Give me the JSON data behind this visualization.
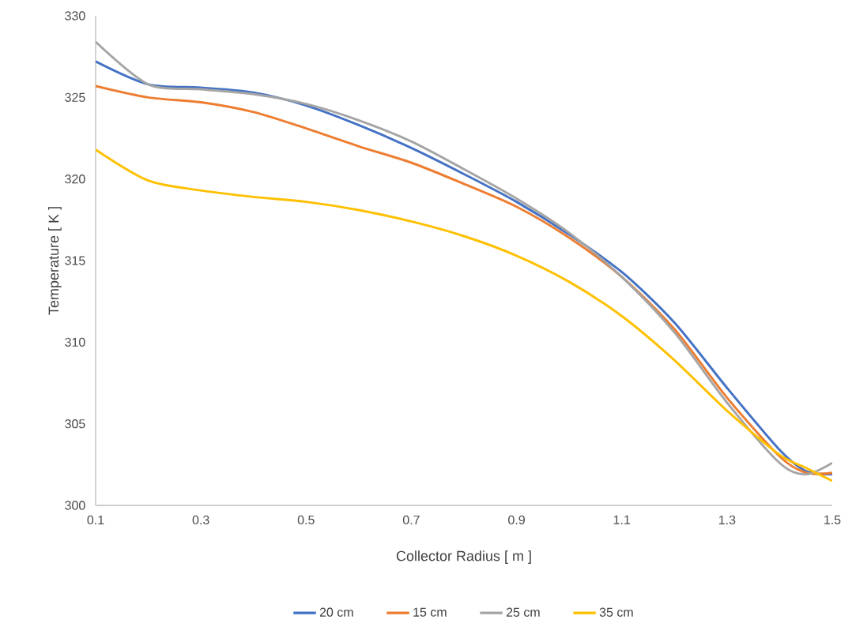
{
  "chart_data": {
    "type": "line",
    "xlabel": "Collector Radius [ m ]",
    "ylabel": "Temperature [ K ]",
    "x": [
      0.1,
      0.2,
      0.3,
      0.4,
      0.5,
      0.6,
      0.7,
      0.8,
      0.9,
      1.0,
      1.1,
      1.2,
      1.3,
      1.4,
      1.45,
      1.5
    ],
    "series": [
      {
        "name": "20 cm",
        "color": "#4472c4",
        "values": [
          327.2,
          325.8,
          325.6,
          325.3,
          324.5,
          323.3,
          321.9,
          320.3,
          318.6,
          316.6,
          314.3,
          311.2,
          307.2,
          303.4,
          302.1,
          301.9
        ]
      },
      {
        "name": "15 cm",
        "color": "#ed7d31",
        "values": [
          325.7,
          325.0,
          324.7,
          324.1,
          323.1,
          322.0,
          321.0,
          319.7,
          318.3,
          316.4,
          314.0,
          310.8,
          306.6,
          303.0,
          302.0,
          302.0
        ]
      },
      {
        "name": "25 cm",
        "color": "#a5a5a5",
        "values": [
          328.4,
          325.8,
          325.5,
          325.2,
          324.6,
          323.6,
          322.3,
          320.6,
          318.8,
          316.7,
          314.0,
          310.6,
          306.3,
          302.6,
          301.9,
          302.6
        ]
      },
      {
        "name": "35 cm",
        "color": "#ffc000",
        "values": [
          321.8,
          319.9,
          319.3,
          318.9,
          318.6,
          318.1,
          317.4,
          316.5,
          315.3,
          313.7,
          311.6,
          308.9,
          305.8,
          303.1,
          302.3,
          301.5
        ]
      }
    ],
    "xlim": [
      0.1,
      1.5
    ],
    "xticks": [
      0.1,
      0.3,
      0.5,
      0.7,
      0.9,
      1.1,
      1.3,
      1.5
    ],
    "ylim": [
      300,
      330
    ],
    "yticks": [
      300,
      305,
      310,
      315,
      320,
      325,
      330
    ],
    "grid": false,
    "legend": "bottom",
    "marker": "none",
    "line_style": "solid"
  }
}
